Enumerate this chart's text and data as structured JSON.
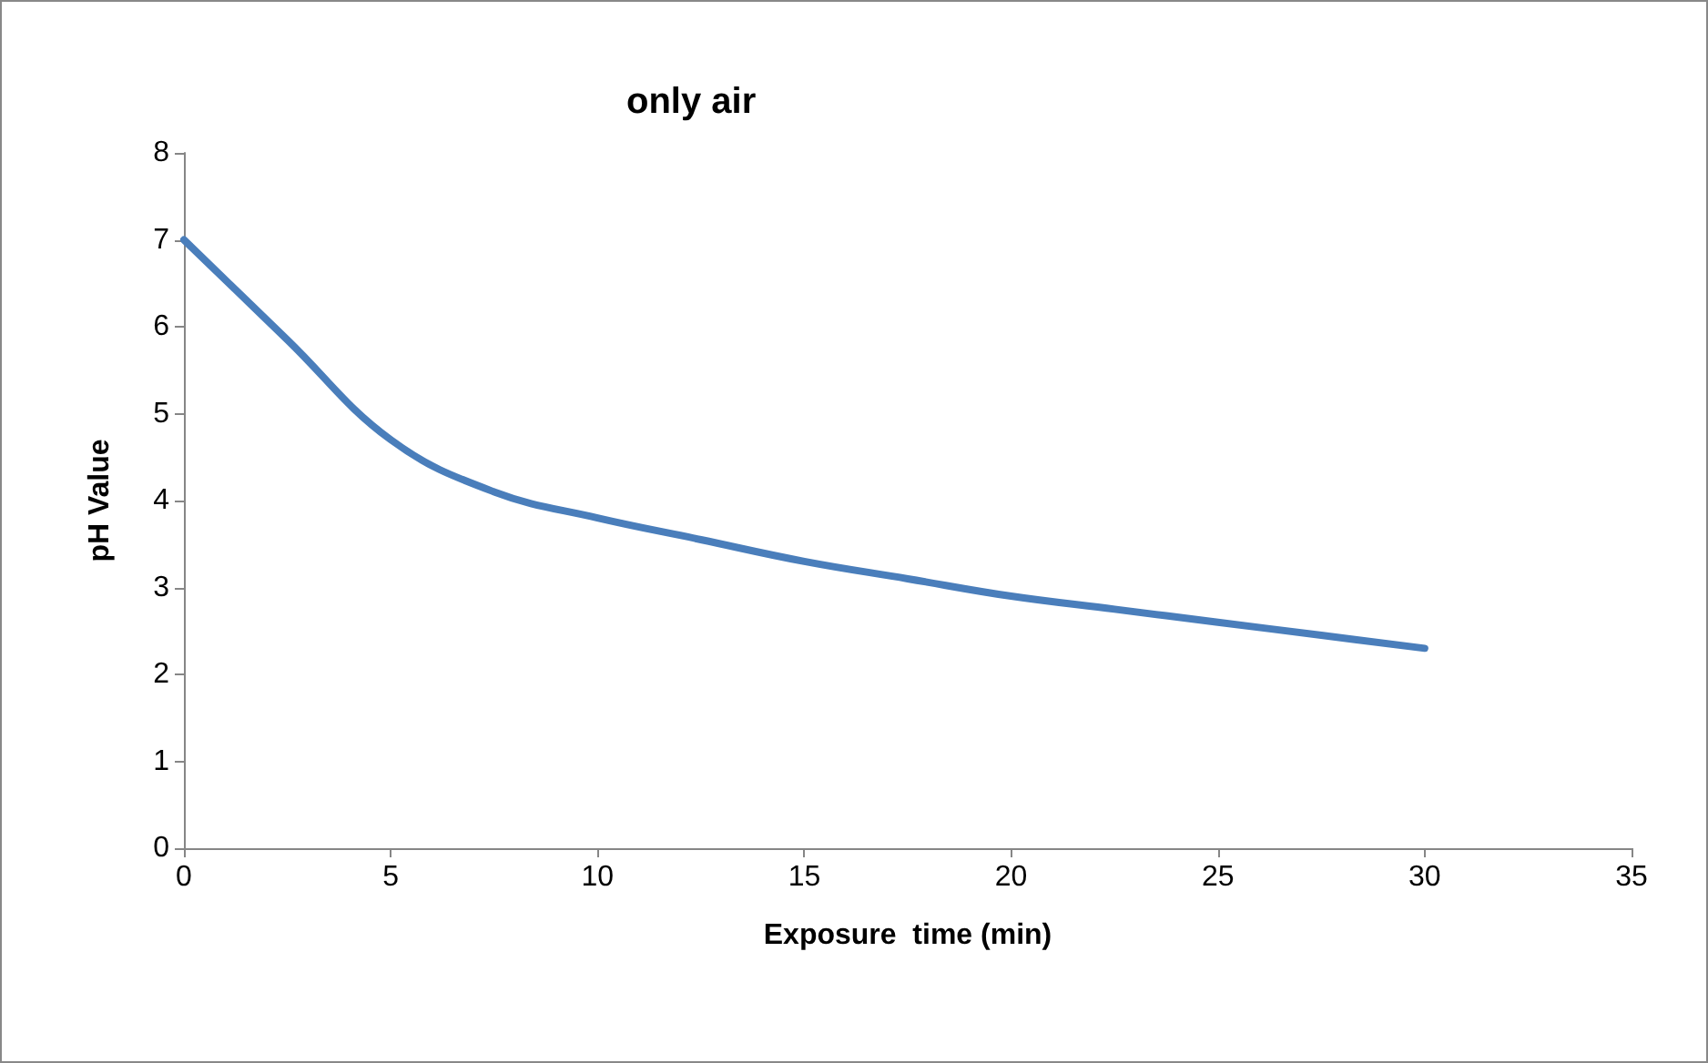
{
  "chart_data": {
    "type": "line",
    "title": "only air",
    "xlabel": "Exposure  time (min)",
    "ylabel": "pH Value",
    "x": [
      0,
      2.5,
      5,
      7.5,
      10,
      12.5,
      15,
      17.5,
      20,
      22.5,
      25,
      27.5,
      30
    ],
    "values": [
      7.0,
      5.85,
      4.7,
      4.1,
      3.8,
      3.55,
      3.3,
      3.1,
      2.9,
      2.75,
      2.6,
      2.45,
      2.3
    ],
    "color": "#4a7ebb",
    "xlim": [
      0,
      35
    ],
    "xticks": [
      0,
      5,
      10,
      15,
      20,
      25,
      30,
      35
    ],
    "ylim": [
      0,
      8
    ],
    "yticks": [
      0,
      1,
      2,
      3,
      4,
      5,
      6,
      7,
      8
    ]
  }
}
